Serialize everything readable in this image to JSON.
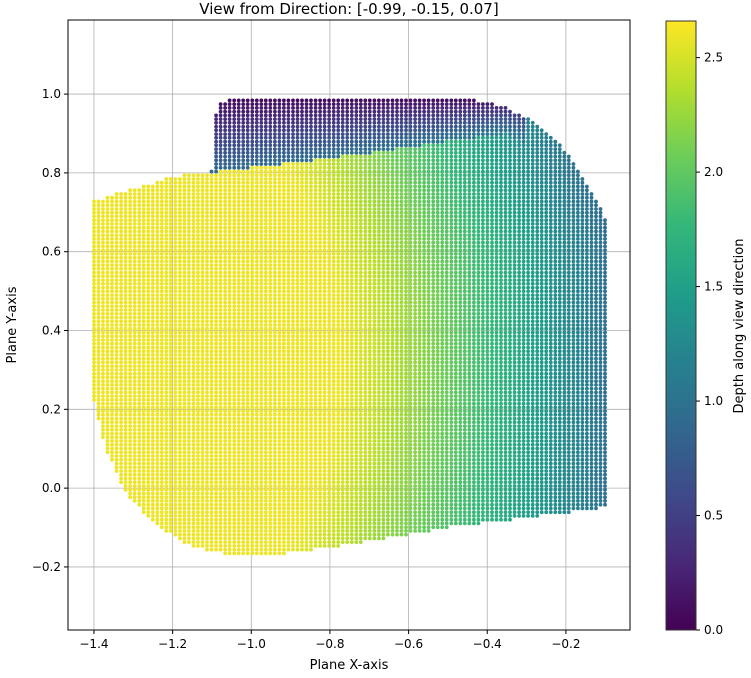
{
  "chart_data": {
    "type": "scatter",
    "title": "View from Direction: [-0.99, -0.15, 0.07]",
    "xlabel": "Plane X-axis",
    "ylabel": "Plane Y-axis",
    "xlim": [
      -1.466,
      -0.037
    ],
    "ylim": [
      -0.36,
      1.188
    ],
    "grid": true,
    "xticks": [
      -1.4,
      -1.2,
      -1.0,
      -0.8,
      -0.6,
      -0.4,
      -0.2
    ],
    "xtick_labels": [
      "−1.4",
      "−1.2",
      "−1.0",
      "−0.8",
      "−0.6",
      "−0.4",
      "−0.2"
    ],
    "yticks": [
      -0.2,
      0.0,
      0.2,
      0.4,
      0.6,
      0.8,
      1.0
    ],
    "ytick_labels": [
      "−0.2",
      "0.0",
      "0.2",
      "0.4",
      "0.6",
      "0.8",
      "1.0"
    ],
    "colormap": "viridis",
    "colorbar": {
      "label": "Depth along view direction",
      "range": [
        0.0,
        2.66
      ],
      "ticks": [
        0.0,
        0.5,
        1.0,
        1.5,
        2.0,
        2.5
      ],
      "tick_labels": [
        "0.0",
        "0.5",
        "1.0",
        "1.5",
        "2.0",
        "2.5"
      ]
    },
    "point_cloud_outline": [
      [
        -1.4,
        0.22
      ],
      [
        -1.4,
        0.73
      ],
      [
        -1.3,
        0.76
      ],
      [
        -1.2,
        0.79
      ],
      [
        -1.1,
        0.805
      ],
      [
        -1.1,
        0.93
      ],
      [
        -1.08,
        0.975
      ],
      [
        -1.05,
        0.99
      ],
      [
        -0.45,
        0.99
      ],
      [
        -0.36,
        0.97
      ],
      [
        -0.28,
        0.93
      ],
      [
        -0.21,
        0.87
      ],
      [
        -0.16,
        0.79
      ],
      [
        -0.12,
        0.73
      ],
      [
        -0.1,
        0.68
      ],
      [
        -0.1,
        -0.05
      ],
      [
        -0.3,
        -0.075
      ],
      [
        -0.5,
        -0.1
      ],
      [
        -0.7,
        -0.135
      ],
      [
        -0.9,
        -0.165
      ],
      [
        -1.05,
        -0.17
      ],
      [
        -1.15,
        -0.15
      ],
      [
        -1.25,
        -0.09
      ],
      [
        -1.32,
        -0.01
      ],
      [
        -1.37,
        0.1
      ]
    ],
    "front_top_edge": [
      [
        -1.12,
        0.8
      ],
      [
        -0.9,
        0.825
      ],
      [
        -0.7,
        0.85
      ],
      [
        -0.5,
        0.88
      ],
      [
        -0.35,
        0.9
      ]
    ],
    "depth_range_front": [
      1.0,
      2.6
    ],
    "depth_range_top": [
      0.05,
      1.0
    ]
  }
}
